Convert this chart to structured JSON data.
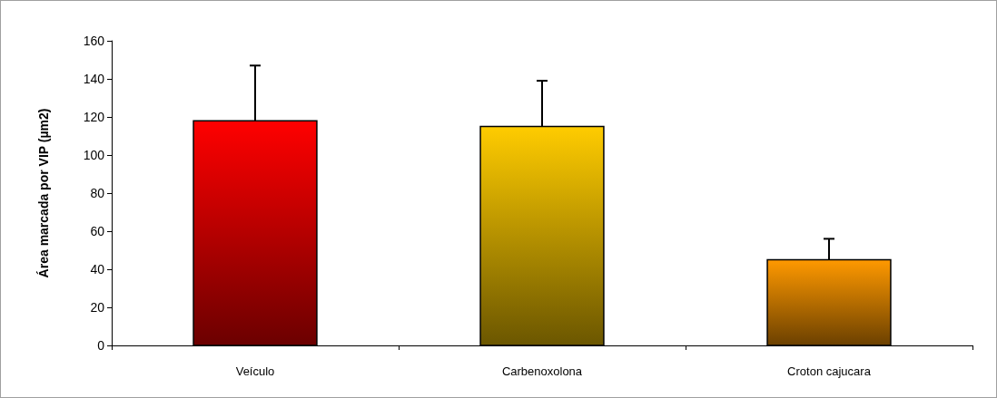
{
  "chart_data": {
    "type": "bar",
    "ylabel": "Área marcada por VIP (µm2)",
    "categories": [
      "Veículo",
      "Carbenoxolona",
      "Croton cajucara"
    ],
    "values": [
      118,
      115,
      45
    ],
    "colors": [
      "#ff0000",
      "#ffcc00",
      "#ff9900"
    ],
    "errors": [
      [
        118,
        147
      ],
      [
        115,
        139
      ],
      [
        45,
        56
      ]
    ],
    "ylim": [
      0,
      160
    ],
    "yticks": [
      0,
      20,
      40,
      60,
      80,
      100,
      120,
      140,
      160
    ],
    "grid": false
  }
}
